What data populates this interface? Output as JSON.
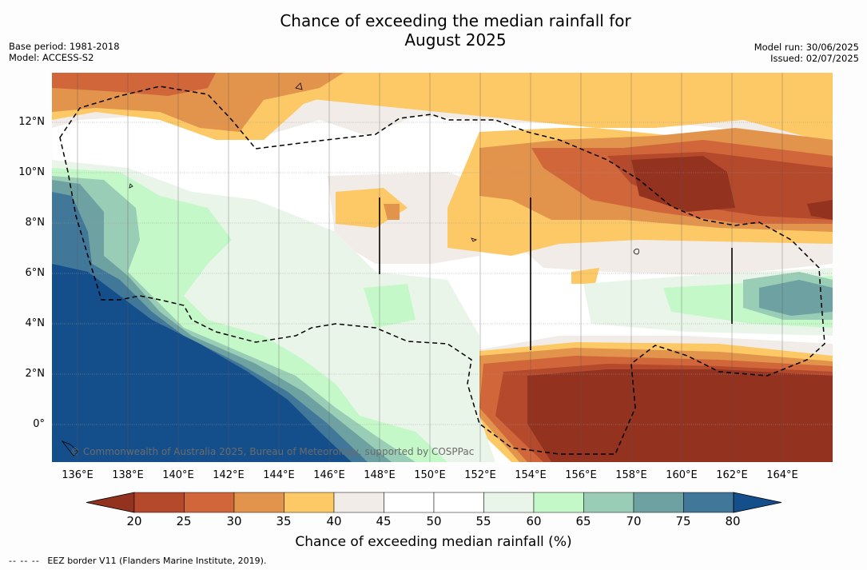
{
  "title_line1": "Chance of exceeding the median rainfall for",
  "title_line2": "August 2025",
  "meta": {
    "base_period": "Base period: 1981-2018",
    "model": "Model: ACCESS-S2",
    "model_run": "Model run: 30/06/2025",
    "issued": "Issued: 02/07/2025"
  },
  "copyright": "© Commonwealth of Australia 2025, Bureau of Meteorology, supported by COSPPac",
  "latitudes": [
    "12°N",
    "10°N",
    "8°N",
    "6°N",
    "4°N",
    "2°N",
    "0°"
  ],
  "longitudes": [
    "136°E",
    "138°E",
    "140°E",
    "142°E",
    "144°E",
    "146°E",
    "148°E",
    "150°E",
    "152°E",
    "154°E",
    "156°E",
    "158°E",
    "160°E",
    "162°E",
    "164°E"
  ],
  "colorbar": {
    "ticks": [
      "20",
      "25",
      "30",
      "35",
      "40",
      "45",
      "50",
      "55",
      "60",
      "65",
      "70",
      "75",
      "80"
    ],
    "label": "Chance of exceeding median rainfall (%)",
    "colors": [
      "#93331f",
      "#b5492c",
      "#d0663a",
      "#e2934c",
      "#fdc866",
      "#f1ece7",
      "#ffffff",
      "#ffffff",
      "#eaf5ea",
      "#c5f8c8",
      "#9acdb5",
      "#6ea1a2",
      "#41789a",
      "#154f8b"
    ]
  },
  "footer": {
    "dash": "-- -- --",
    "text": "EEZ border V11 (Flanders Marine Institute, 2019)."
  }
}
